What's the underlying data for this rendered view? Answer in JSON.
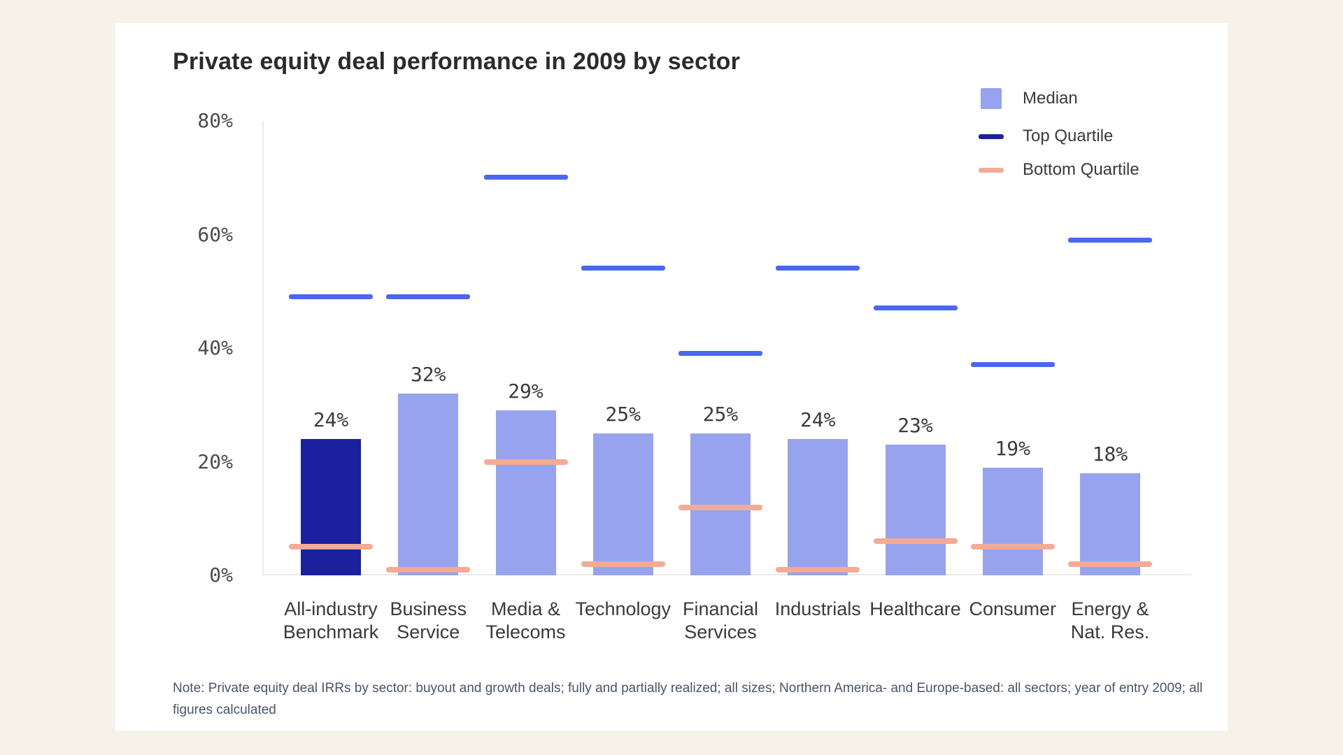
{
  "page": {
    "background_color": "#f7f2e9",
    "card_color": "#ffffff"
  },
  "header": {
    "title": "Private equity deal performance in 2009 by sector"
  },
  "legend": {
    "items": [
      {
        "label": "Median",
        "swatch": "square",
        "color": "#97a3ee"
      },
      {
        "label": "Top Quartile",
        "swatch": "line",
        "color": "#1b22a0"
      },
      {
        "label": "Bottom Quartile",
        "swatch": "line",
        "color": "#f5aa95"
      }
    ]
  },
  "chart_data": {
    "type": "bar",
    "title": "Private equity deal performance in 2009 by sector",
    "xlabel": "",
    "ylabel": "",
    "ylim": [
      0,
      80
    ],
    "grid": false,
    "legend_position": "top-right",
    "yticks": [
      {
        "label": "80%",
        "v": 80
      },
      {
        "label": "60%",
        "v": 60
      },
      {
        "label": "40%",
        "v": 40
      },
      {
        "label": "20%",
        "v": 20
      },
      {
        "label": "0%",
        "v": 0
      }
    ],
    "categories": [
      "All-industry Benchmark",
      "Business Service",
      "Media & Telecoms",
      "Technology",
      "Financial Services",
      "Industrials",
      "Healthcare",
      "Consumer",
      "Energy & Nat. Res."
    ],
    "category_lines": [
      [
        "All-industry",
        "Benchmark"
      ],
      [
        "Business",
        "Service"
      ],
      [
        "Media &",
        "Telecoms"
      ],
      [
        "Technology"
      ],
      [
        "Financial",
        "Services"
      ],
      [
        "Industrials"
      ],
      [
        "Healthcare"
      ],
      [
        "Consumer"
      ],
      [
        "Energy &",
        "Nat. Res."
      ]
    ],
    "series": [
      {
        "name": "Median",
        "values": [
          24,
          32,
          29,
          25,
          25,
          24,
          23,
          19,
          18
        ]
      },
      {
        "name": "Top Quartile",
        "values": [
          49,
          49,
          70,
          54,
          39,
          54,
          47,
          37,
          59
        ]
      },
      {
        "name": "Bottom Quartile",
        "values": [
          5,
          1,
          20,
          2,
          12,
          1,
          6,
          5,
          2
        ]
      }
    ],
    "bar_labels": [
      "24%",
      "32%",
      "29%",
      "25%",
      "25%",
      "24%",
      "23%",
      "19%",
      "18%"
    ],
    "highlight_index": 0,
    "colors": {
      "median": "#97a3ee",
      "benchmark_bar": "#1b209f",
      "top_quartile_line": "#4a67ef",
      "bottom_quartile_line": "#f5aa95",
      "legend_top_quartile": "#1b22a0"
    }
  },
  "note": {
    "text": "Note: Private equity deal IRRs by sector: buyout and growth deals; fully and partially realized; all sizes; Northern America- and Europe-based: all sectors; year of entry 2009; all figures calculated"
  }
}
